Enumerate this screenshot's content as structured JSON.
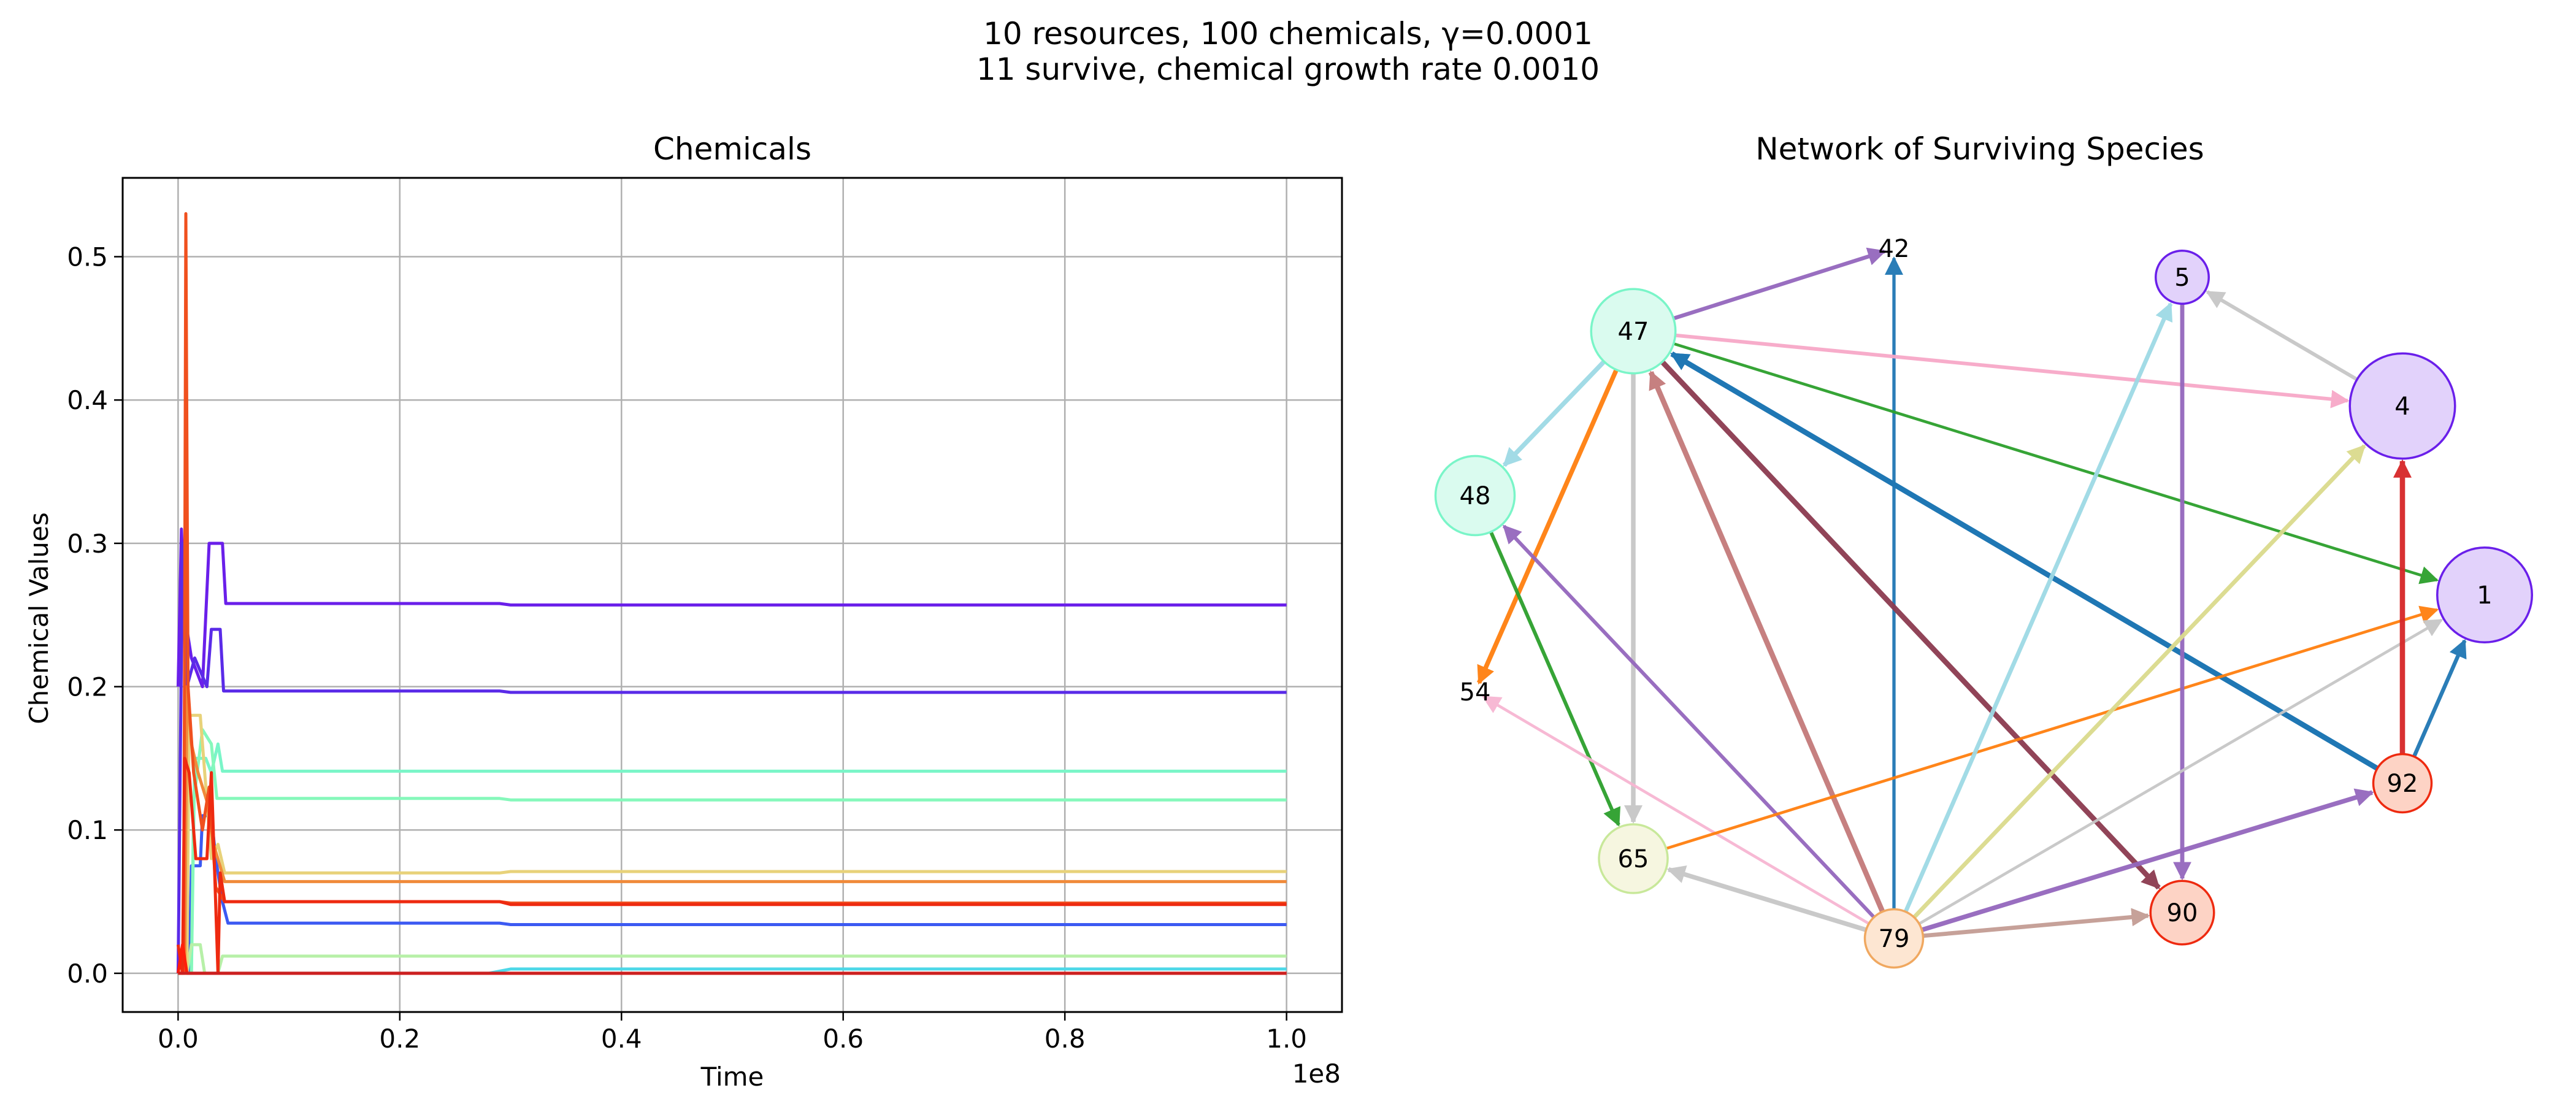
{
  "figure": {
    "title_line1": "10 resources, 100 chemicals, γ=0.0001",
    "title_line2": "11 survive, chemical growth rate 0.0010"
  },
  "chart_data": [
    {
      "type": "line",
      "title": "Chemicals",
      "xlabel": "Time",
      "ylabel": "Chemical Values",
      "x_offset_label": "1e8",
      "xlim": [
        -0.05,
        1.05
      ],
      "ylim": [
        -0.027,
        0.555
      ],
      "x_ticks": [
        0.0,
        0.2,
        0.4,
        0.6,
        0.8,
        1.0
      ],
      "x_tick_labels": [
        "0.0",
        "0.2",
        "0.4",
        "0.6",
        "0.8",
        "1.0"
      ],
      "y_ticks": [
        0.0,
        0.1,
        0.2,
        0.3,
        0.4,
        0.5
      ],
      "y_tick_labels": [
        "0.0",
        "0.1",
        "0.2",
        "0.3",
        "0.4",
        "0.5"
      ],
      "grid": true,
      "series": [
        {
          "color": "#6a1fea",
          "points": [
            [
              0.0,
              0.2
            ],
            [
              0.003,
              0.31
            ],
            [
              0.006,
              0.25
            ],
            [
              0.012,
              0.22
            ],
            [
              0.022,
              0.2
            ],
            [
              0.028,
              0.3
            ],
            [
              0.04,
              0.3
            ],
            [
              0.043,
              0.258
            ],
            [
              0.29,
              0.258
            ],
            [
              0.3,
              0.257
            ],
            [
              1.0,
              0.257
            ]
          ]
        },
        {
          "color": "#5a2be8",
          "points": [
            [
              0.0,
              0.0
            ],
            [
              0.004,
              0.3
            ],
            [
              0.008,
              0.2
            ],
            [
              0.015,
              0.22
            ],
            [
              0.026,
              0.2
            ],
            [
              0.03,
              0.24
            ],
            [
              0.038,
              0.24
            ],
            [
              0.041,
              0.197
            ],
            [
              0.29,
              0.197
            ],
            [
              0.3,
              0.196
            ],
            [
              1.0,
              0.196
            ]
          ]
        },
        {
          "color": "#3c5af2",
          "points": [
            [
              0.0,
              0.0
            ],
            [
              0.01,
              0.0
            ],
            [
              0.012,
              0.075
            ],
            [
              0.02,
              0.075
            ],
            [
              0.022,
              0.11
            ],
            [
              0.03,
              0.11
            ],
            [
              0.034,
              0.08
            ],
            [
              0.04,
              0.05
            ],
            [
              0.045,
              0.035
            ],
            [
              0.29,
              0.035
            ],
            [
              0.3,
              0.034
            ],
            [
              1.0,
              0.034
            ]
          ]
        },
        {
          "color": "#7af5c8",
          "points": [
            [
              0.0,
              0.0
            ],
            [
              0.012,
              0.0
            ],
            [
              0.015,
              0.15
            ],
            [
              0.025,
              0.15
            ],
            [
              0.03,
              0.14
            ],
            [
              0.036,
              0.16
            ],
            [
              0.04,
              0.141
            ],
            [
              1.0,
              0.141
            ]
          ]
        },
        {
          "color": "#86f8bb",
          "points": [
            [
              0.0,
              0.0
            ],
            [
              0.012,
              0.0
            ],
            [
              0.014,
              0.12
            ],
            [
              0.022,
              0.17
            ],
            [
              0.03,
              0.16
            ],
            [
              0.035,
              0.122
            ],
            [
              0.29,
              0.122
            ],
            [
              0.3,
              0.121
            ],
            [
              1.0,
              0.121
            ]
          ]
        },
        {
          "color": "#b7f0a8",
          "points": [
            [
              0.0,
              0.0
            ],
            [
              0.008,
              0.0
            ],
            [
              0.012,
              0.02
            ],
            [
              0.02,
              0.02
            ],
            [
              0.024,
              0.0
            ],
            [
              0.036,
              0.0
            ],
            [
              0.04,
              0.012
            ],
            [
              1.0,
              0.012
            ]
          ]
        },
        {
          "color": "#4ed8e8",
          "points": [
            [
              0.0,
              0.0
            ],
            [
              0.28,
              0.0
            ],
            [
              0.3,
              0.003
            ],
            [
              1.0,
              0.003
            ]
          ]
        },
        {
          "color": "#e8d27a",
          "points": [
            [
              0.0,
              0.0
            ],
            [
              0.008,
              0.0
            ],
            [
              0.01,
              0.18
            ],
            [
              0.02,
              0.18
            ],
            [
              0.026,
              0.12
            ],
            [
              0.03,
              0.08
            ],
            [
              0.036,
              0.09
            ],
            [
              0.042,
              0.07
            ],
            [
              0.29,
              0.07
            ],
            [
              0.3,
              0.071
            ],
            [
              1.0,
              0.071
            ]
          ]
        },
        {
          "color": "#f08a3a",
          "points": [
            [
              0.0,
              0.0
            ],
            [
              0.006,
              0.0
            ],
            [
              0.008,
              0.2
            ],
            [
              0.012,
              0.16
            ],
            [
              0.018,
              0.14
            ],
            [
              0.026,
              0.12
            ],
            [
              0.032,
              0.09
            ],
            [
              0.042,
              0.064
            ],
            [
              1.0,
              0.064
            ]
          ]
        },
        {
          "color": "#f0501e",
          "points": [
            [
              0.0,
              0.0
            ],
            [
              0.005,
              0.0
            ],
            [
              0.007,
              0.53
            ],
            [
              0.009,
              0.2
            ],
            [
              0.014,
              0.14
            ],
            [
              0.022,
              0.1
            ],
            [
              0.028,
              0.13
            ],
            [
              0.034,
              0.06
            ],
            [
              0.042,
              0.05
            ],
            [
              0.29,
              0.05
            ],
            [
              0.3,
              0.049
            ],
            [
              1.0,
              0.049
            ]
          ]
        },
        {
          "color": "#ee2a10",
          "points": [
            [
              0.0,
              0.02
            ],
            [
              0.004,
              0.0
            ],
            [
              0.006,
              0.15
            ],
            [
              0.01,
              0.14
            ],
            [
              0.016,
              0.08
            ],
            [
              0.026,
              0.08
            ],
            [
              0.03,
              0.14
            ],
            [
              0.036,
              0.0
            ],
            [
              0.038,
              0.07
            ],
            [
              0.042,
              0.05
            ],
            [
              0.29,
              0.05
            ],
            [
              0.3,
              0.048
            ],
            [
              1.0,
              0.048
            ]
          ]
        },
        {
          "color": "#ff1e0a",
          "points": [
            [
              0.0,
              0.0
            ],
            [
              0.004,
              0.02
            ],
            [
              0.008,
              0.0
            ],
            [
              1.0,
              0.0
            ]
          ]
        },
        {
          "color": "#cc2020",
          "points": [
            [
              0.0,
              0.0
            ],
            [
              1.0,
              0.0
            ]
          ]
        }
      ]
    },
    {
      "type": "network",
      "title": "Network of Surviving Species",
      "nodes": [
        {
          "id": "42",
          "fill": "#ffffff",
          "stroke": "#ffffff",
          "size": 0.0
        },
        {
          "id": "5",
          "fill": "#e2d2fb",
          "stroke": "#6a1fea",
          "size": 0.25
        },
        {
          "id": "47",
          "fill": "#dafbef",
          "stroke": "#7af5c8",
          "size": 0.55
        },
        {
          "id": "4",
          "fill": "#e2d2fb",
          "stroke": "#6a1fea",
          "size": 0.75
        },
        {
          "id": "48",
          "fill": "#dafbef",
          "stroke": "#7af5c8",
          "size": 0.5
        },
        {
          "id": "1",
          "fill": "#e2d2fb",
          "stroke": "#6a1fea",
          "size": 0.65
        },
        {
          "id": "54",
          "fill": "#ffffff",
          "stroke": "#ffffff",
          "size": 0.0
        },
        {
          "id": "92",
          "fill": "#fdd3c5",
          "stroke": "#ee2a10",
          "size": 0.3
        },
        {
          "id": "65",
          "fill": "#f6f6e0",
          "stroke": "#c8e89a",
          "size": 0.4
        },
        {
          "id": "90",
          "fill": "#fdd3c5",
          "stroke": "#ee2a10",
          "size": 0.35
        },
        {
          "id": "79",
          "fill": "#fde6d2",
          "stroke": "#f0a860",
          "size": 0.3
        }
      ],
      "edges": [
        {
          "source": "47",
          "target": "42",
          "color": "#9467bd",
          "weight": 2
        },
        {
          "source": "79",
          "target": "42",
          "color": "#1f77b4",
          "weight": 1.5
        },
        {
          "source": "47",
          "target": "4",
          "color": "#f7a8c8",
          "weight": 1.8
        },
        {
          "source": "47",
          "target": "48",
          "color": "#9edae5",
          "weight": 2.5
        },
        {
          "source": "47",
          "target": "54",
          "color": "#ff7f0e",
          "weight": 2.5
        },
        {
          "source": "47",
          "target": "65",
          "color": "#c7c7c7",
          "weight": 2.5
        },
        {
          "source": "47",
          "target": "1",
          "color": "#2ca02c",
          "weight": 1.2
        },
        {
          "source": "92",
          "target": "47",
          "color": "#1f77b4",
          "weight": 3
        },
        {
          "source": "92",
          "target": "47",
          "color": "#1f77b4",
          "weight": 3
        },
        {
          "source": "47",
          "target": "90",
          "color": "#8c3b50",
          "weight": 3
        },
        {
          "source": "79",
          "target": "47",
          "color": "#c47a7a",
          "weight": 3
        },
        {
          "source": "48",
          "target": "65",
          "color": "#2ca02c",
          "weight": 1.8
        },
        {
          "source": "79",
          "target": "48",
          "color": "#9467bd",
          "weight": 1.8
        },
        {
          "source": "79",
          "target": "54",
          "color": "#f7b6d2",
          "weight": 1.2
        },
        {
          "source": "65",
          "target": "1",
          "color": "#ff7f0e",
          "weight": 1.2
        },
        {
          "source": "79",
          "target": "65",
          "color": "#c7c7c7",
          "weight": 2.5
        },
        {
          "source": "79",
          "target": "5",
          "color": "#9edae5",
          "weight": 2.2
        },
        {
          "source": "5",
          "target": "90",
          "color": "#9467bd",
          "weight": 2.2
        },
        {
          "source": "4",
          "target": "5",
          "color": "#c7c7c7",
          "weight": 1.8
        },
        {
          "source": "79",
          "target": "4",
          "color": "#dbdb8d",
          "weight": 2.2
        },
        {
          "source": "79",
          "target": "1",
          "color": "#c7c7c7",
          "weight": 1.2
        },
        {
          "source": "79",
          "target": "92",
          "color": "#9467bd",
          "weight": 2.5
        },
        {
          "source": "79",
          "target": "90",
          "color": "#c49c94",
          "weight": 2.2
        },
        {
          "source": "92",
          "target": "4",
          "color": "#d62728",
          "weight": 3
        },
        {
          "source": "92",
          "target": "1",
          "color": "#1f77b4",
          "weight": 2
        }
      ]
    }
  ]
}
